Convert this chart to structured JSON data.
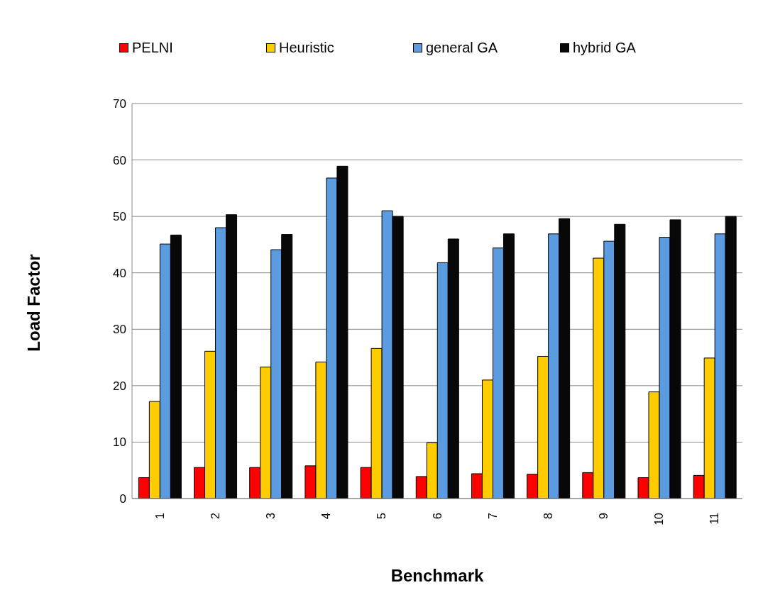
{
  "chart_data": {
    "type": "bar",
    "xlabel": "Benchmark",
    "ylabel": "Load Factor",
    "categories": [
      "1",
      "2",
      "3",
      "4",
      "5",
      "6",
      "7",
      "8",
      "9",
      "10",
      "11"
    ],
    "series": [
      {
        "name": "PELNI",
        "color": "#ff0000",
        "values": [
          3.7,
          5.5,
          5.5,
          5.8,
          5.5,
          3.9,
          4.4,
          4.3,
          4.6,
          3.7,
          4.1
        ]
      },
      {
        "name": "Heuristic",
        "color": "#ffcc00",
        "values": [
          17.2,
          26.1,
          23.3,
          24.2,
          26.6,
          9.9,
          21.0,
          25.2,
          42.6,
          18.9,
          24.9
        ]
      },
      {
        "name": "general GA",
        "color": "#5b9bdf",
        "values": [
          45.1,
          48.0,
          44.1,
          56.8,
          51.0,
          41.8,
          44.4,
          46.9,
          45.6,
          46.3,
          46.9
        ]
      },
      {
        "name": "hybrid GA",
        "color": "#080808",
        "values": [
          46.7,
          50.3,
          46.8,
          58.9,
          50.0,
          46.0,
          46.9,
          49.6,
          48.6,
          49.4,
          50.0
        ]
      }
    ],
    "ylim": [
      0,
      70
    ],
    "yticks": [
      0,
      10,
      20,
      30,
      40,
      50,
      60,
      70
    ],
    "grid": "y",
    "legend": "top"
  }
}
